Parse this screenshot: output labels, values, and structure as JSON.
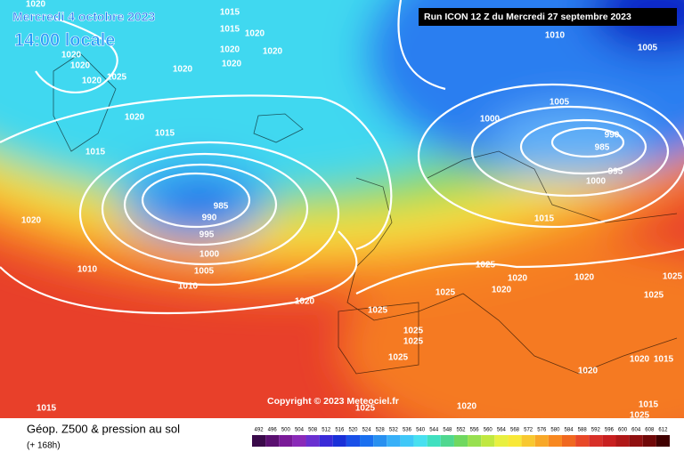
{
  "header": {
    "date": "Mercredi 4 octobre 2023",
    "time": "14:00 locale",
    "run": "Run ICON 12 Z du Mercredi 27 septembre 2023"
  },
  "copyright": "Copyright © 2023 Meteociel.fr",
  "footer": {
    "title": "Géop. Z500 & pression au sol",
    "lead": "(+ 168h)"
  },
  "scale": {
    "values": [
      492,
      496,
      500,
      504,
      508,
      512,
      516,
      520,
      524,
      528,
      532,
      536,
      540,
      544,
      548,
      552,
      556,
      560,
      564,
      568,
      572,
      576,
      580,
      584,
      588,
      592,
      596,
      600,
      604,
      608,
      612
    ],
    "colors": [
      "#3a0a4a",
      "#5a1070",
      "#7a1a98",
      "#8a2ab8",
      "#6a30d0",
      "#3a2ad8",
      "#1a30d8",
      "#1a50e8",
      "#1a70f0",
      "#2890f0",
      "#38b0f8",
      "#40c8f8",
      "#48e0f0",
      "#40e0c0",
      "#50d890",
      "#70d860",
      "#98e050",
      "#c0e840",
      "#e8f040",
      "#f8e838",
      "#f8c830",
      "#f8a828",
      "#f88820",
      "#f06820",
      "#e84828",
      "#d83028",
      "#c82020",
      "#b01818",
      "#901010",
      "#700808",
      "#400000"
    ]
  },
  "isobar_labels": [
    1020,
    1015,
    1015,
    1020,
    1020,
    1020,
    1020,
    1020,
    1020,
    1020,
    1020,
    1025,
    1020,
    1015,
    1015,
    1020,
    985,
    990,
    995,
    1000,
    1005,
    1010,
    1010,
    1020,
    1010,
    1005,
    1005,
    1000,
    990,
    985,
    995,
    1000,
    1015,
    1025,
    1020,
    1020,
    1025,
    1025,
    1025,
    1025,
    1025,
    1020,
    1025,
    1025,
    1020,
    1015,
    1020,
    1020,
    1015,
    1025,
    1015,
    1025
  ]
}
